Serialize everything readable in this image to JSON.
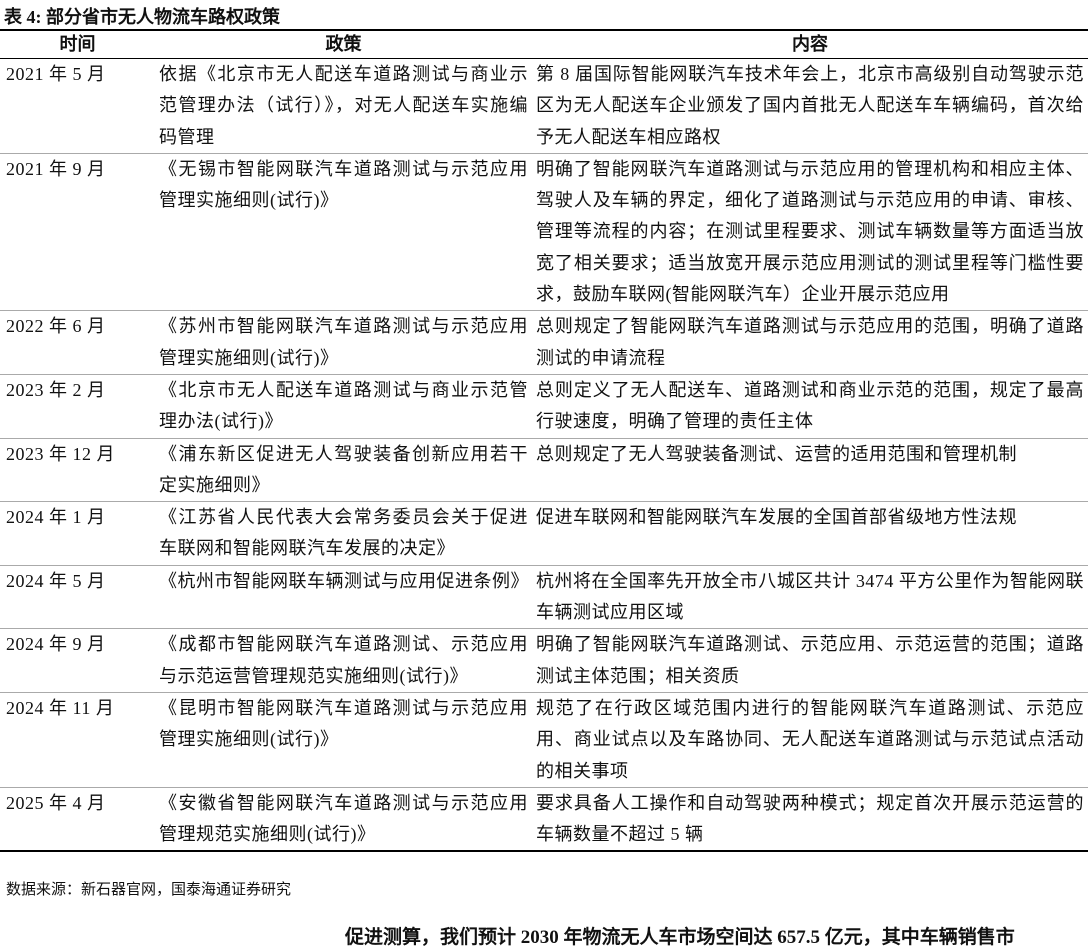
{
  "header": {
    "title": "表 4: 部分省市无人物流车路权政策"
  },
  "table": {
    "headers": [
      "时间",
      "政策",
      "内容"
    ],
    "rows": [
      [
        "2021 年 5 月",
        "依据《北京市无人配送车道路测试与商业示范管理办法（试行）》，对无人配送车实施编码管理",
        "第 8 届国际智能网联汽车技术年会上，北京市高级别自动驾驶示范区为无人配送车企业颁发了国内首批无人配送车车辆编码，首次给予无人配送车相应路权"
      ],
      [
        "2021 年 9 月",
        "《无锡市智能网联汽车道路测试与示范应用管理实施细则(试行)》",
        "明确了智能网联汽车道路测试与示范应用的管理机构和相应主体、驾驶人及车辆的界定，细化了道路测试与示范应用的申请、审核、管理等流程的内容；在测试里程要求、测试车辆数量等方面适当放宽了相关要求；适当放宽开展示范应用测试的测试里程等门槛性要求，鼓励车联网(智能网联汽车）企业开展示范应用"
      ],
      [
        "2022 年 6 月",
        "《苏州市智能网联汽车道路测试与示范应用管理实施细则(试行)》",
        "总则规定了智能网联汽车道路测试与示范应用的范围，明确了道路测试的申请流程"
      ],
      [
        "2023 年 2 月",
        "《北京市无人配送车道路测试与商业示范管理办法(试行)》",
        "总则定义了无人配送车、道路测试和商业示范的范围，规定了最高行驶速度，明确了管理的责任主体"
      ],
      [
        "2023 年 12 月",
        "《浦东新区促进无人驾驶装备创新应用若干定实施细则》",
        "总则规定了无人驾驶装备测试、运营的适用范围和管理机制"
      ],
      [
        "2024 年 1 月",
        "《江苏省人民代表大会常务委员会关于促进车联网和智能网联汽车发展的决定》",
        "促进车联网和智能网联汽车发展的全国首部省级地方性法规"
      ],
      [
        "2024 年 5 月",
        "《杭州市智能网联车辆测试与应用促进条例》",
        "杭州将在全国率先开放全市八城区共计 3474 平方公里作为智能网联车辆测试应用区域"
      ],
      [
        "2024 年 9 月",
        "《成都市智能网联汽车道路测试、示范应用与示范运营管理规范实施细则(试行)》",
        "明确了智能网联汽车道路测试、示范应用、示范运营的范围；道路测试主体范围；相关资质"
      ],
      [
        "2024 年 11 月",
        "《昆明市智能网联汽车道路测试与示范应用管理实施细则(试行)》",
        "规范了在行政区域范围内进行的智能网联汽车道路测试、示范应用、商业试点以及车路协同、无人配送车道路测试与示范试点活动的相关事项"
      ],
      [
        "2025 年 4 月",
        "《安徽省智能网联汽车道路测试与示范应用管理规范实施细则(试行)》",
        "要求具备人工操作和自动驾驶两种模式；规定首次开展示范运营的车辆数量不超过 5 辆"
      ]
    ]
  },
  "footer": {
    "source": "数据来源：新石器官网，国泰海通证券研究",
    "next_paragraph": "促进测算，我们预计 2030 年物流无人车市场空间达 657.5 亿元，其中车辆销售市"
  }
}
